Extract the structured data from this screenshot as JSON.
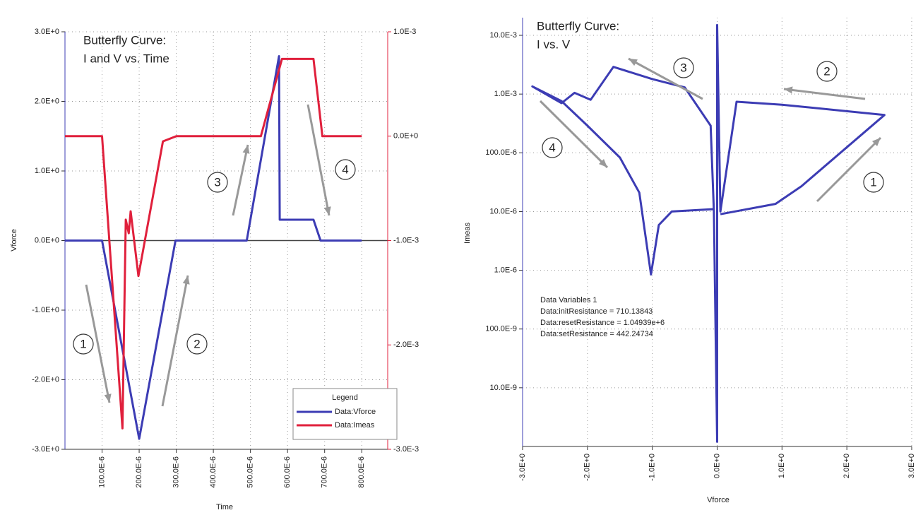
{
  "chart_data": [
    {
      "type": "line",
      "title": "Butterfly Curve:",
      "subtitle": "I and V vs. Time",
      "xlabel": "Time",
      "ylabel": "Vforce",
      "xlim": [
        0,
        0.00087
      ],
      "xticks": [
        {
          "value": 0.0001,
          "label": "100.0E-6"
        },
        {
          "value": 0.0002,
          "label": "200.0E-6"
        },
        {
          "value": 0.0003,
          "label": "300.0E-6"
        },
        {
          "value": 0.0004,
          "label": "400.0E-6"
        },
        {
          "value": 0.0005,
          "label": "500.0E-6"
        },
        {
          "value": 0.0006,
          "label": "600.0E-6"
        },
        {
          "value": 0.0007,
          "label": "700.0E-6"
        },
        {
          "value": 0.0008,
          "label": "800.0E-6"
        }
      ],
      "ylim": [
        -3,
        3
      ],
      "yticks": [
        {
          "value": -3,
          "label": "-3.0E+0"
        },
        {
          "value": -2,
          "label": "-2.0E+0"
        },
        {
          "value": -1,
          "label": "-1.0E+0"
        },
        {
          "value": 0,
          "label": "0.0E+0"
        },
        {
          "value": 1,
          "label": "1.0E+0"
        },
        {
          "value": 2,
          "label": "2.0E+0"
        },
        {
          "value": 3,
          "label": "3.0E+0"
        }
      ],
      "y2lim": [
        -0.003,
        0.001
      ],
      "y2ticks": [
        {
          "value": -0.003,
          "label": "-3.0E-3"
        },
        {
          "value": -0.002,
          "label": "-2.0E-3"
        },
        {
          "value": -0.001,
          "label": "-1.0E-3"
        },
        {
          "value": 0,
          "label": "0.0E+0"
        },
        {
          "value": 0.001,
          "label": "1.0E-3"
        }
      ],
      "grid": true,
      "legend_title": "Legend",
      "series": [
        {
          "name": "Data:Vforce",
          "color": "#3c3cb4",
          "x": [
            0,
            0.0001,
            0.0002,
            0.000298,
            0.00049,
            0.000577,
            0.000579,
            0.00067,
            0.000689,
            0.0008
          ],
          "values": [
            0,
            0,
            -2.85,
            0,
            0,
            2.65,
            0.3,
            0.3,
            0,
            0
          ]
        },
        {
          "name": "Data:Imeas",
          "color": "#e0203c",
          "axis": "y2",
          "x": [
            0,
            0.0001,
            0.000155,
            0.000164,
            0.000172,
            0.000177,
            0.000198,
            0.000264,
            0.0003,
            0.000528,
            0.000585,
            0.00067,
            0.000694,
            0.0008
          ],
          "values": [
            0,
            0,
            -0.0028,
            -0.0008,
            -0.00093,
            -0.00072,
            -0.00134,
            -5e-05,
            0,
            0,
            0.00074,
            0.00074,
            0,
            0
          ]
        }
      ],
      "annotations": [
        "1",
        "2",
        "3",
        "4"
      ]
    },
    {
      "type": "line",
      "title": "Butterfly Curve:",
      "subtitle": "I vs. V",
      "xlabel": "Vforce",
      "ylabel": "Imeas",
      "xlim": [
        -3,
        3
      ],
      "xticks": [
        {
          "value": -3,
          "label": "-3.0E+0"
        },
        {
          "value": -2,
          "label": "-2.0E+0"
        },
        {
          "value": -1,
          "label": "-1.0E+0"
        },
        {
          "value": 0,
          "label": "0.0E+0"
        },
        {
          "value": 1,
          "label": "1.0E+0"
        },
        {
          "value": 2,
          "label": "2.0E+0"
        },
        {
          "value": 3,
          "label": "3.0E+0"
        }
      ],
      "ylim": [
        1e-09,
        0.02
      ],
      "log_y": true,
      "yticks": [
        {
          "value": 1e-08,
          "label": "10.0E-9"
        },
        {
          "value": 1e-07,
          "label": "100.0E-9"
        },
        {
          "value": 1e-06,
          "label": "1.0E-6"
        },
        {
          "value": 1e-05,
          "label": "10.0E-6"
        },
        {
          "value": 0.0001,
          "label": "100.0E-6"
        },
        {
          "value": 0.001,
          "label": "1.0E-3"
        },
        {
          "value": 0.01,
          "label": "10.0E-3"
        }
      ],
      "grid": true,
      "series": [
        {
          "name": "Imeas",
          "color": "#3c3cb4",
          "x": [
            0.05,
            0.9,
            1.3,
            2.58,
            1.0,
            0.3,
            0.05,
            0,
            0,
            -0.05,
            -0.1,
            -0.5,
            -1.0,
            -1.6,
            -1.95,
            -2.2,
            -2.4,
            -2.85,
            -2.4,
            -2.0,
            -1.5,
            -1.2,
            -1.02,
            -0.9,
            -0.7,
            -0.05
          ],
          "values": [
            9e-06,
            1.35e-05,
            2.7e-05,
            0.00044,
            0.00066,
            0.00074,
            1e-05,
            0.015,
            1.2e-09,
            1e-05,
            0.00029,
            0.0013,
            0.0018,
            0.0029,
            0.0008,
            0.00105,
            0.0007,
            0.00135,
            0.00076,
            0.00029,
            8.3e-05,
            2.1e-05,
            8.5e-07,
            5.9e-06,
            1e-05,
            1.1e-05
          ]
        }
      ],
      "annotations": [
        "1",
        "2",
        "3",
        "4"
      ],
      "text_box": [
        "Data Variables 1",
        "Data:initResistance = 710.13843",
        "Data:resetResistance = 1.04939e+6",
        "Data:setResistance = 442.24734"
      ]
    }
  ]
}
